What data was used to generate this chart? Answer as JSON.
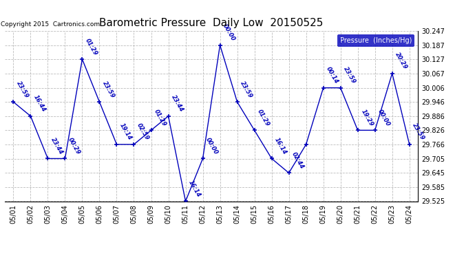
{
  "title": "Barometric Pressure  Daily Low  20150525",
  "copyright": "Copyright 2015  Cartronics.com",
  "legend_label": "Pressure  (Inches/Hg)",
  "x_labels": [
    "05/01",
    "05/02",
    "05/03",
    "05/04",
    "05/05",
    "05/06",
    "05/07",
    "05/08",
    "05/09",
    "05/10",
    "05/11",
    "05/12",
    "05/13",
    "05/14",
    "05/15",
    "05/16",
    "05/17",
    "05/18",
    "05/19",
    "05/20",
    "05/21",
    "05/22",
    "05/23",
    "05/24"
  ],
  "y_values": [
    29.946,
    29.886,
    29.706,
    29.706,
    30.127,
    29.946,
    29.766,
    29.766,
    29.826,
    29.886,
    29.525,
    29.706,
    30.187,
    29.946,
    29.826,
    29.706,
    29.645,
    29.766,
    30.006,
    30.006,
    29.826,
    29.826,
    30.067,
    29.766
  ],
  "point_labels": [
    "23:59",
    "16:44",
    "23:44",
    "00:29",
    "01:29",
    "23:59",
    "19:14",
    "02:59",
    "01:29",
    "23:44",
    "16:14",
    "00:00",
    "00:00",
    "23:59",
    "01:29",
    "16:14",
    "02:44",
    "",
    "00:14",
    "23:59",
    "19:29",
    "00:00",
    "20:29",
    "23:59"
  ],
  "ylim_min": 29.525,
  "ylim_max": 30.247,
  "y_ticks": [
    29.525,
    29.585,
    29.645,
    29.705,
    29.766,
    29.826,
    29.886,
    29.946,
    30.006,
    30.067,
    30.127,
    30.187,
    30.247
  ],
  "line_color": "#0000bb",
  "bg_color": "#ffffff",
  "grid_color": "#bbbbbb",
  "title_fontsize": 11,
  "tick_fontsize": 7,
  "annot_fontsize": 6,
  "legend_bg": "#0000bb",
  "legend_fg": "#ffffff"
}
